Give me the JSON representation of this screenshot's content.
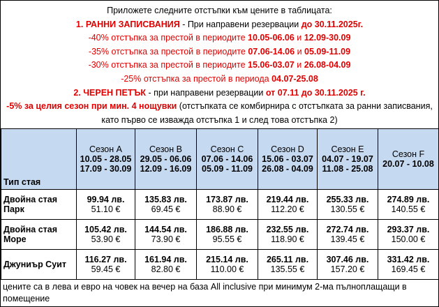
{
  "notes": [
    [
      {
        "text": "Приложете следните отстъпки към цените в таблицата:",
        "color": "#000000",
        "bold": false
      }
    ],
    [
      {
        "text": "1. РАННИ ЗАПИСВАНИЯ",
        "color": "#e00000",
        "bold": true
      },
      {
        "text": " - При направени резервации ",
        "color": "#000000",
        "bold": false
      },
      {
        "text": "до 30.11.2025г.",
        "color": "#e00000",
        "bold": true
      }
    ],
    [
      {
        "text": "-40% отстъпка за престой в периодите ",
        "color": "#e00000",
        "bold": false
      },
      {
        "text": "10.05-06.06",
        "color": "#e00000",
        "bold": true
      },
      {
        "text": " и ",
        "color": "#e00000",
        "bold": false
      },
      {
        "text": "12.09-30.09",
        "color": "#e00000",
        "bold": true
      }
    ],
    [
      {
        "text": "-35% отстъпка за престой в периодите ",
        "color": "#e00000",
        "bold": false
      },
      {
        "text": "07.06-14.06",
        "color": "#e00000",
        "bold": true
      },
      {
        "text": " и ",
        "color": "#e00000",
        "bold": false
      },
      {
        "text": "05.09-11.09",
        "color": "#e00000",
        "bold": true
      }
    ],
    [
      {
        "text": "-30% отстъпка за престой в периодите ",
        "color": "#e00000",
        "bold": false
      },
      {
        "text": "15.06-03.07",
        "color": "#e00000",
        "bold": true
      },
      {
        "text": " и ",
        "color": "#e00000",
        "bold": false
      },
      {
        "text": "26.08-04.09",
        "color": "#e00000",
        "bold": true
      }
    ],
    [
      {
        "text": "-25% отстъпка за престой в периода ",
        "color": "#e00000",
        "bold": false
      },
      {
        "text": "04.07-25.08",
        "color": "#e00000",
        "bold": true
      }
    ],
    [
      {
        "text": "2. ЧЕРЕН ПЕТЪК",
        "color": "#e00000",
        "bold": true
      },
      {
        "text": " - при направени резервации ",
        "color": "#000000",
        "bold": false
      },
      {
        "text": "от 07.11 до 30.11.2025 г.",
        "color": "#e00000",
        "bold": true
      }
    ],
    [
      {
        "text": "-5% за целия сезон при мин. 4 нощувки",
        "color": "#e00000",
        "bold": true
      },
      {
        "text": " (отстъпката се комбирнира с отстъпката за ранни записвания, като първо се изважда отстъпка 1 и след това отстъпка 2)",
        "color": "#000000",
        "bold": false
      }
    ]
  ],
  "table": {
    "header": {
      "room": "Тип стая",
      "seasons": [
        {
          "name": "Сезон A",
          "periods": [
            "10.05 - 28.05",
            "17.09 - 30.09"
          ]
        },
        {
          "name": "Сезон B",
          "periods": [
            "29.05 - 06.06",
            "12.09 - 16.09"
          ]
        },
        {
          "name": "Сезон C",
          "periods": [
            "07.06 - 14.06",
            "05.09 - 11.09"
          ]
        },
        {
          "name": "Сезон D",
          "periods": [
            "15.06 - 03.07",
            "26.08 - 04.09"
          ]
        },
        {
          "name": "Сезон E",
          "periods": [
            "04.07 - 19.07",
            "11.08 - 25.08"
          ]
        },
        {
          "name": "Сезон F",
          "periods": [
            "20.07 - 10.08"
          ]
        }
      ]
    },
    "rows": [
      {
        "room": "Двойна стая Парк",
        "prices": [
          [
            "99.94 лв.",
            "51.10 €"
          ],
          [
            "135.83 лв.",
            "69.45 €"
          ],
          [
            "173.87 лв.",
            "88.90 €"
          ],
          [
            "219.44 лв.",
            "112.20 €"
          ],
          [
            "255.33 лв.",
            "130.55 €"
          ],
          [
            "274.89 лв.",
            "140.55 €"
          ]
        ]
      },
      {
        "room": "Двойна стая Море",
        "prices": [
          [
            "105.42 лв.",
            "53.90 €"
          ],
          [
            "144.54 лв.",
            "73.90 €"
          ],
          [
            "186.88 лв.",
            "95.55 €"
          ],
          [
            "232.55 лв.",
            "118.90 €"
          ],
          [
            "272.74 лв.",
            "139.45 €"
          ],
          [
            "293.37 лв.",
            "150.00 €"
          ]
        ]
      },
      {
        "room": "Джуниър Суит",
        "prices": [
          [
            "116.27 лв.",
            "59.45 €"
          ],
          [
            "161.94 лв.",
            "82.80 €"
          ],
          [
            "215.14 лв.",
            "110.00 €"
          ],
          [
            "265.11 лв.",
            "135.55 €"
          ],
          [
            "307.46 лв.",
            "157.20 €"
          ],
          [
            "331.42 лв.",
            "169.45 €"
          ]
        ]
      }
    ],
    "footer": "цените са в лева и евро на човек на вечер на база All inclusive при минимум 2-ма пълноплащащи в помещение"
  }
}
